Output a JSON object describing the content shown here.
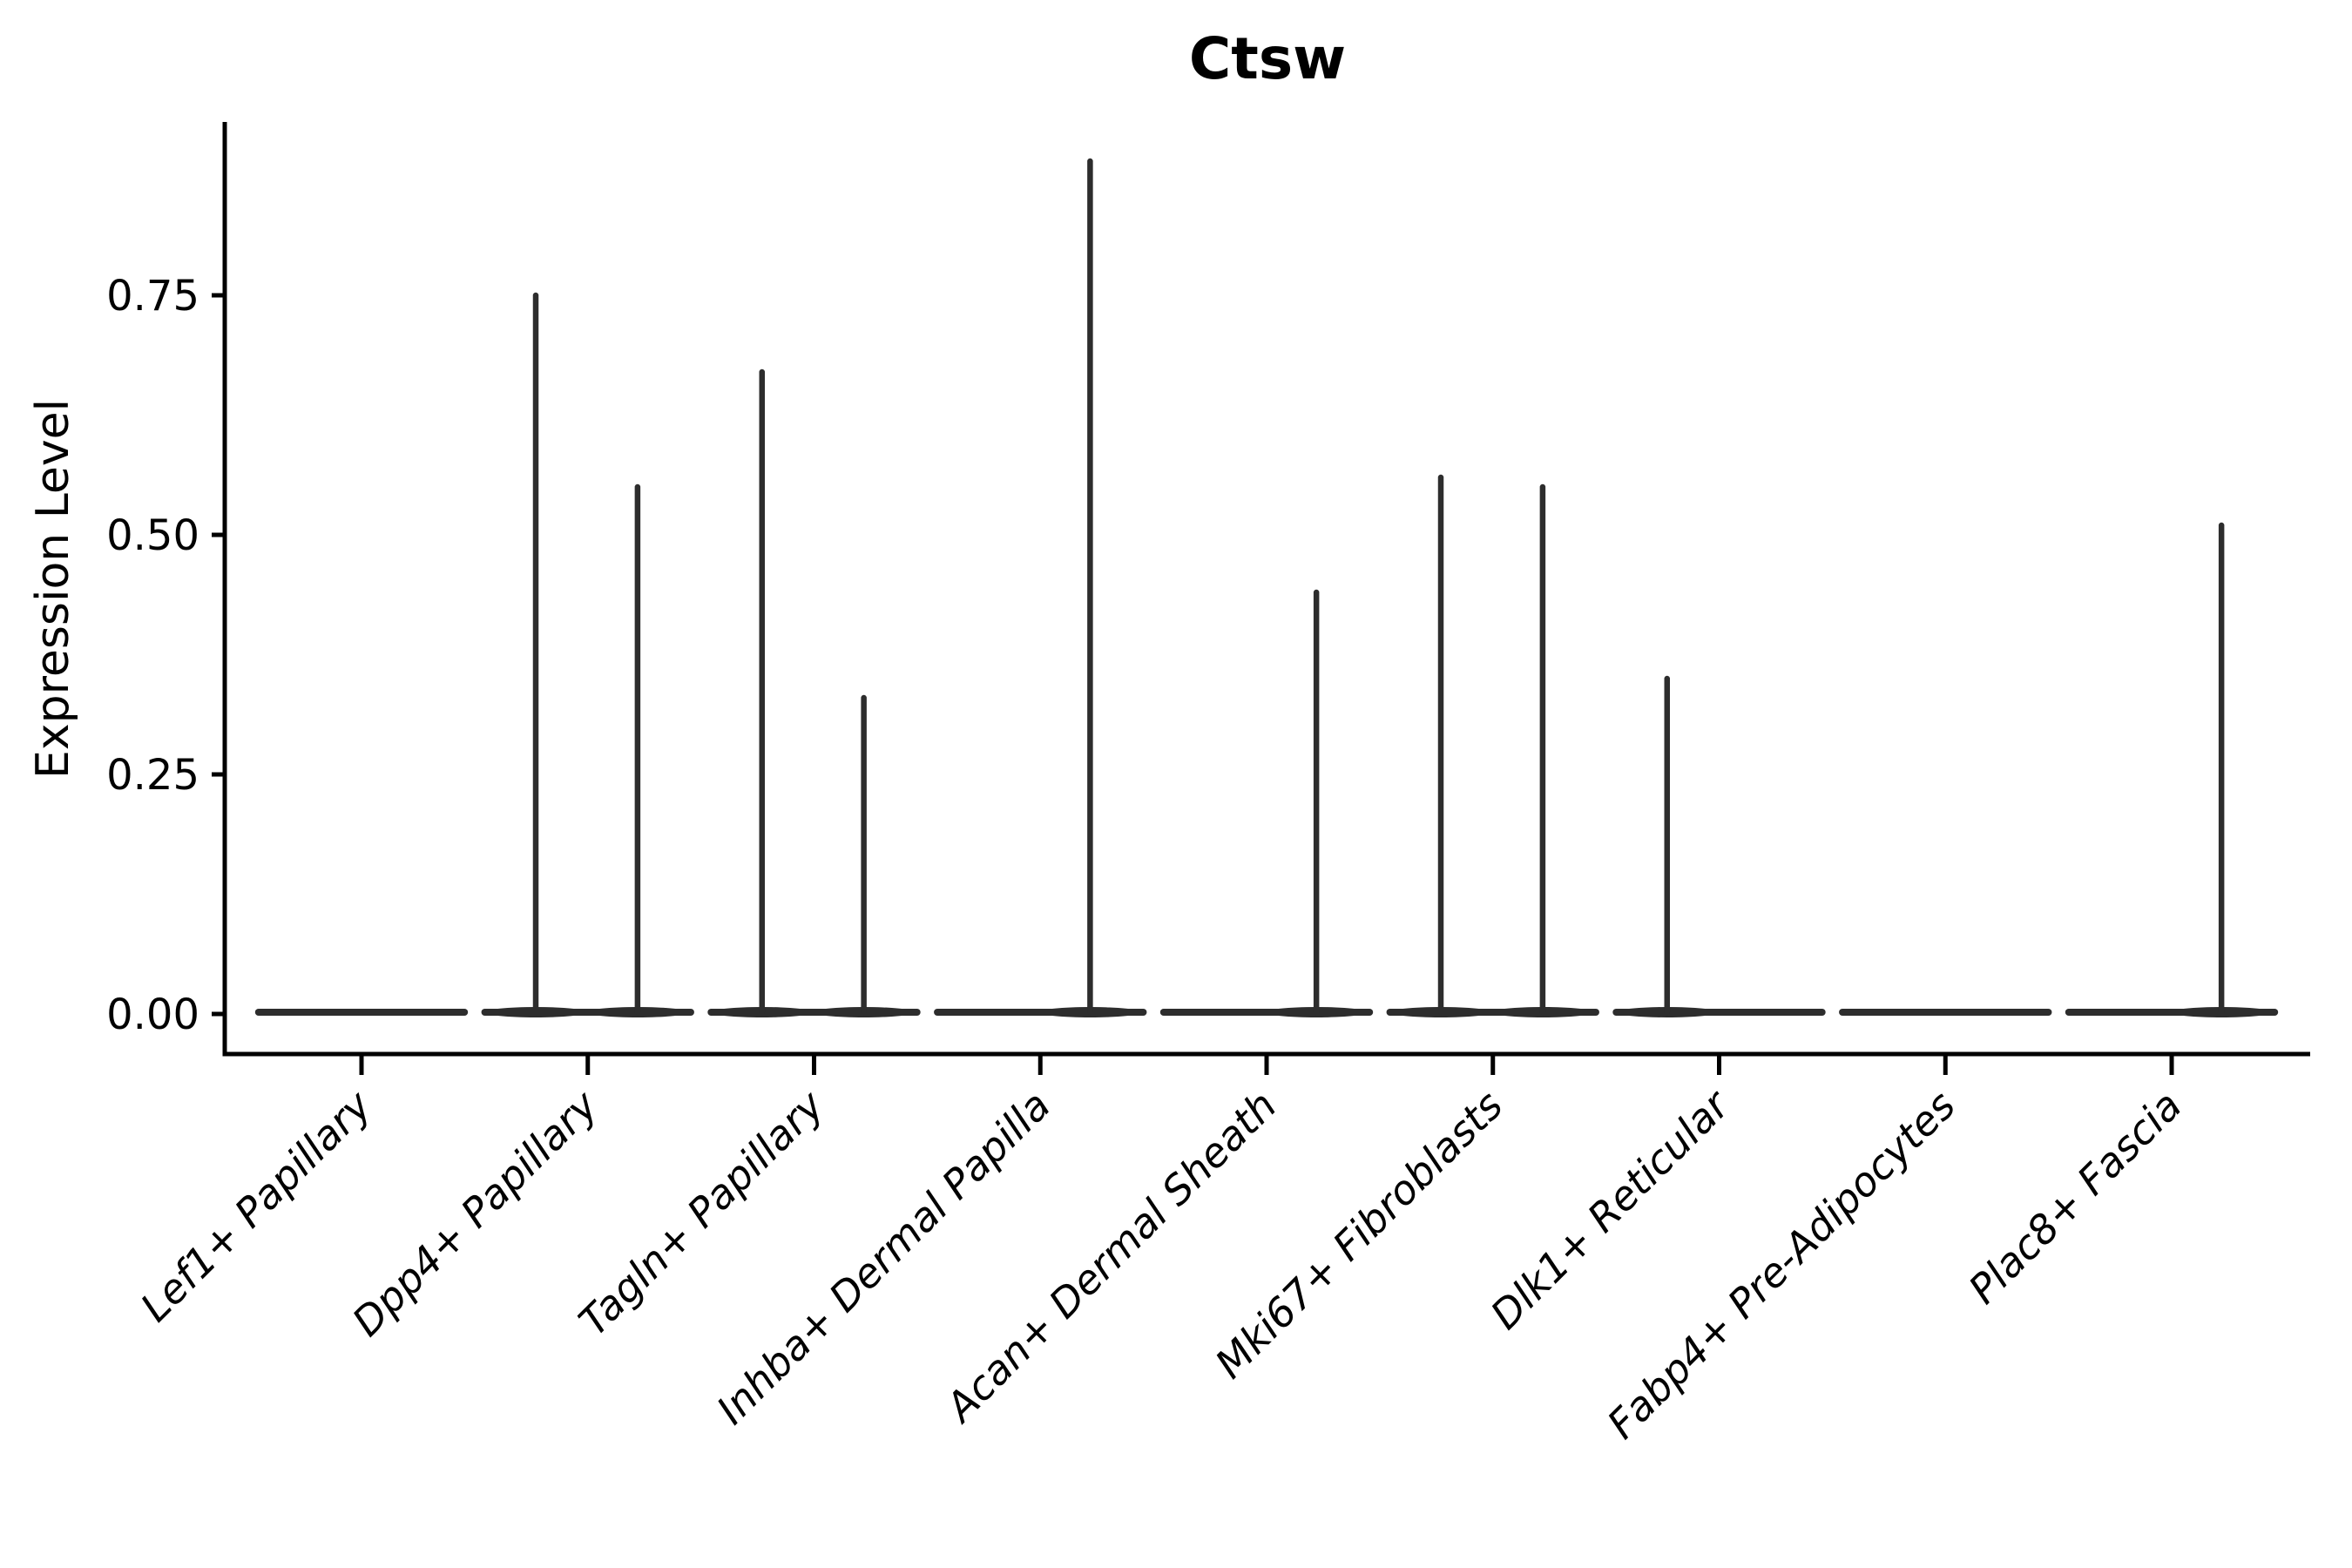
{
  "figure": {
    "background": "#ffffff"
  },
  "colors": {
    "axis": "#000000",
    "text": "#000000",
    "violin": "#2d2d2d"
  },
  "chart_data": {
    "type": "violin",
    "title": "Ctsw",
    "xlabel": "",
    "ylabel": "Expression Level",
    "legend": "none",
    "grid": false,
    "ylim": [
      -0.04,
      0.93
    ],
    "yticks": [
      0.0,
      0.25,
      0.5,
      0.75
    ],
    "ytick_labels": [
      "0.00",
      "0.25",
      "0.50",
      "0.75"
    ],
    "categories": [
      "Lef1+ Papillary",
      "Dpp4+ Papillary",
      "Tagln+ Papillary",
      "Inhba+ Dermal Papilla",
      "Acan+ Dermal Sheath",
      "Mki67+ Fibroblasts",
      "Dlk1+ Reticular",
      "Fabp4+ Pre-Adipocytes",
      "Plac8+ Fascia"
    ],
    "violin_halfwidth": 0.455,
    "baseline_value": 0.0,
    "violins": [
      {
        "category": "Lef1+ Papillary",
        "baseline": 0.0,
        "spikes": []
      },
      {
        "category": "Dpp4+ Papillary",
        "baseline": 0.0,
        "spikes": [
          {
            "pos": -0.23,
            "max": 0.75
          },
          {
            "pos": 0.22,
            "max": 0.55
          }
        ]
      },
      {
        "category": "Tagln+ Papillary",
        "baseline": 0.0,
        "spikes": [
          {
            "pos": -0.23,
            "max": 0.67
          },
          {
            "pos": 0.22,
            "max": 0.33
          }
        ]
      },
      {
        "category": "Inhba+ Dermal Papilla",
        "baseline": 0.0,
        "spikes": [
          {
            "pos": 0.22,
            "max": 0.89
          }
        ]
      },
      {
        "category": "Acan+ Dermal Sheath",
        "baseline": 0.0,
        "spikes": [
          {
            "pos": 0.22,
            "max": 0.44
          }
        ]
      },
      {
        "category": "Mki67+ Fibroblasts",
        "baseline": 0.0,
        "spikes": [
          {
            "pos": -0.23,
            "max": 0.56
          },
          {
            "pos": 0.22,
            "max": 0.55
          }
        ]
      },
      {
        "category": "Dlk1+ Reticular",
        "baseline": 0.0,
        "spikes": [
          {
            "pos": -0.23,
            "max": 0.35
          }
        ]
      },
      {
        "category": "Fabp4+ Pre-Adipocytes",
        "baseline": 0.0,
        "spikes": []
      },
      {
        "category": "Plac8+ Fascia",
        "baseline": 0.0,
        "spikes": [
          {
            "pos": 0.22,
            "max": 0.51
          }
        ]
      }
    ]
  }
}
